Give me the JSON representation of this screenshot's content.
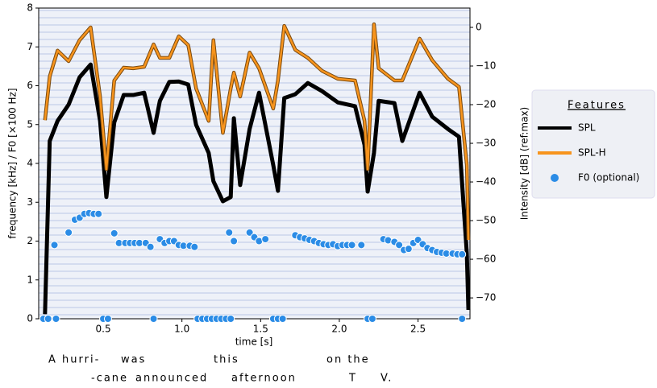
{
  "chart_data": {
    "type": "line",
    "xlabel": "time [s]",
    "ylabel": "frequency [kHz]  /  F0 [×100 Hz]",
    "y2label": "Intensity [dB] (ref:max)",
    "legend_title": "Features",
    "legend": "right",
    "xlim": [
      0.09,
      2.83
    ],
    "xticks": [
      0.5,
      {
        "value": 1,
        "label": "1.0"
      },
      1.5,
      {
        "value": 2,
        "label": "2.0"
      },
      2.5
    ],
    "ylim": [
      0,
      8
    ],
    "yticks": [
      0,
      1,
      2,
      3,
      4,
      5,
      6,
      7,
      8
    ],
    "y2lim": [
      -75.4,
      5
    ],
    "y2ticks": [
      0,
      {
        "value": -10,
        "label": "−10"
      },
      {
        "value": -20,
        "label": "−20"
      },
      {
        "value": -30,
        "label": "−30"
      },
      {
        "value": -40,
        "label": "−40"
      },
      {
        "value": -50,
        "label": "−50"
      },
      {
        "value": -60,
        "label": "−60"
      },
      {
        "value": -70,
        "label": "−70"
      }
    ],
    "x": [
      0.13,
      0.16,
      0.21,
      0.28,
      0.35,
      0.42,
      0.48,
      0.52,
      0.57,
      0.63,
      0.69,
      0.76,
      0.82,
      0.86,
      0.92,
      0.98,
      1.04,
      1.09,
      1.17,
      1.2,
      1.26,
      1.31,
      1.33,
      1.37,
      1.43,
      1.49,
      1.58,
      1.61,
      1.65,
      1.72,
      1.8,
      1.89,
      1.99,
      2.1,
      2.16,
      2.18,
      2.22,
      2.25,
      2.35,
      2.4,
      2.51,
      2.59,
      2.69,
      2.76,
      2.81,
      2.82
    ],
    "series": [
      {
        "name": "SPL",
        "color": "#000000",
        "axis": "y2",
        "values": [
          -74.2,
          -29.4,
          -24.2,
          -20,
          -12.9,
          -9.6,
          -24.2,
          -43.9,
          -24.6,
          -17.5,
          -17.5,
          -16.9,
          -27.3,
          -19,
          -14.1,
          -14,
          -14.8,
          -25.2,
          -32.5,
          -39.8,
          -45,
          -43.9,
          -23.5,
          -40.8,
          -26.3,
          -16.9,
          -35.6,
          -42.3,
          -18.3,
          -17.3,
          -14.4,
          -16.5,
          -19.4,
          -20.4,
          -30.4,
          -42.5,
          -32.5,
          -19,
          -19.6,
          -29.4,
          -16.9,
          -23.1,
          -26.3,
          -28.3,
          -58.5,
          -73.1
        ]
      },
      {
        "name": "SPL-H",
        "color": "#f7941d",
        "axis": "y2",
        "values": [
          -24,
          -12.7,
          -6,
          -8.75,
          -3.3,
          0,
          -17.9,
          -36.7,
          -13.75,
          -10.4,
          -10.6,
          -10.2,
          -4.4,
          -7.9,
          -7.9,
          -2.3,
          -4.6,
          -15.8,
          -24.2,
          -3.3,
          -27.3,
          -15.8,
          -11.7,
          -17.9,
          -6.5,
          -10.6,
          -21,
          -13.75,
          0.4,
          -5.8,
          -7.9,
          -11.25,
          -13.3,
          -13.75,
          -24.2,
          -36.7,
          0.8,
          -10.6,
          -13.75,
          -13.75,
          -2.9,
          -8.5,
          -13.3,
          -15.4,
          -35.6,
          -55
        ]
      },
      {
        "name": "F0 (optional)",
        "color": "#2b8ce6",
        "type": "scatter",
        "x": [
          0.19,
          0.28,
          0.32,
          0.35,
          0.38,
          0.41,
          0.44,
          0.47,
          0.57,
          0.6,
          0.64,
          0.67,
          0.7,
          0.73,
          0.77,
          0.8,
          0.86,
          0.89,
          0.92,
          0.95,
          0.98,
          1.01,
          1.05,
          1.08,
          1.3,
          1.33,
          1.43,
          1.46,
          1.49,
          1.53,
          1.72,
          1.75,
          1.78,
          1.81,
          1.84,
          1.87,
          1.9,
          1.93,
          1.96,
          1.99,
          2.02,
          2.05,
          2.08,
          2.14,
          2.28,
          2.31,
          2.35,
          2.38,
          2.41,
          2.44,
          2.47,
          2.5,
          2.53,
          2.56,
          2.59,
          2.62,
          2.65,
          2.68,
          2.72,
          2.75,
          2.78,
          0.12,
          0.15,
          0.2,
          0.5,
          0.53,
          0.82,
          1.1,
          1.13,
          1.16,
          1.19,
          1.22,
          1.25,
          1.28,
          1.31,
          1.58,
          1.61,
          1.64,
          2.18,
          2.21,
          2.78
        ],
        "values": [
          1.9,
          2.22,
          2.55,
          2.6,
          2.7,
          2.72,
          2.7,
          2.7,
          2.2,
          1.95,
          1.95,
          1.95,
          1.95,
          1.95,
          1.95,
          1.85,
          2.05,
          1.95,
          2,
          2,
          1.9,
          1.88,
          1.88,
          1.85,
          2.22,
          2,
          2.22,
          2.1,
          2,
          2.05,
          2.15,
          2.1,
          2.07,
          2.03,
          2,
          1.95,
          1.92,
          1.9,
          1.92,
          1.87,
          1.9,
          1.9,
          1.9,
          1.9,
          2.05,
          2.02,
          1.98,
          1.9,
          1.77,
          1.8,
          1.95,
          2.03,
          1.92,
          1.82,
          1.77,
          1.72,
          1.7,
          1.68,
          1.68,
          1.66,
          1.66,
          0,
          0,
          0,
          0,
          0,
          0,
          0,
          0,
          0,
          0,
          0,
          0,
          0,
          0,
          0,
          0,
          0,
          0,
          0,
          0
        ]
      }
    ],
    "annotations": [
      "A hurri-",
      "was",
      "this",
      "on the",
      "-cane",
      "announced",
      "afternoon",
      "T",
      "V."
    ]
  }
}
